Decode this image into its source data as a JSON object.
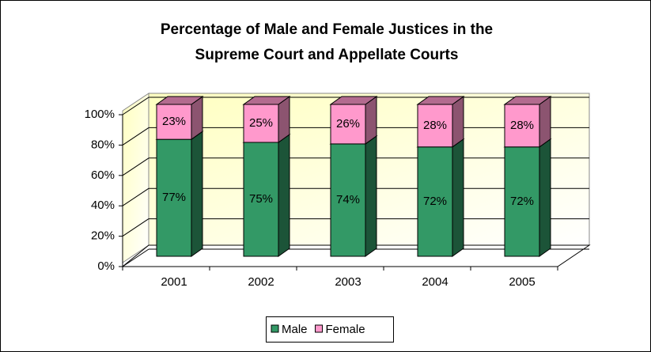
{
  "chart_data": {
    "type": "bar3d_stacked",
    "title": [
      "Percentage of Male and Female Justices in the",
      "Supreme Court and Appellate Courts"
    ],
    "categories": [
      "2001",
      "2002",
      "2003",
      "2004",
      "2005"
    ],
    "series": [
      {
        "name": "Male",
        "color": "#339966",
        "values": [
          77,
          75,
          74,
          72,
          72
        ],
        "value_labels": [
          "77%",
          "75%",
          "74%",
          "72%",
          "72%"
        ]
      },
      {
        "name": "Female",
        "color": "#ff99cc",
        "values": [
          23,
          25,
          26,
          28,
          28
        ],
        "value_labels": [
          "23%",
          "25%",
          "26%",
          "28%",
          "28%"
        ]
      }
    ],
    "ylim": [
      0,
      100
    ],
    "yticks": [
      {
        "value": 0,
        "label": "0%"
      },
      {
        "value": 20,
        "label": "20%"
      },
      {
        "value": 40,
        "label": "40%"
      },
      {
        "value": 60,
        "label": "60%"
      },
      {
        "value": 80,
        "label": "80%"
      },
      {
        "value": 100,
        "label": "100%"
      }
    ],
    "grid": true,
    "legend": "bottom"
  }
}
